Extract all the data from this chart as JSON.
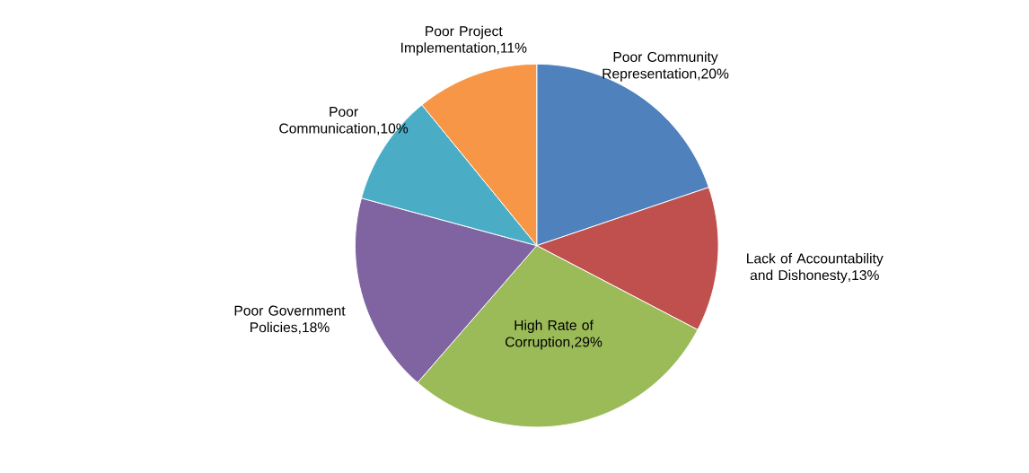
{
  "chart_data": {
    "type": "pie",
    "categories": [
      "Poor Community Representation",
      "Lack of Accountability and Dishonesty",
      "High Rate of Corruption",
      "Poor Government Policies",
      "Poor Communication",
      "Poor Project Implementation"
    ],
    "values": [
      20,
      13,
      29,
      18,
      10,
      11
    ],
    "colors": [
      "#4f81bd",
      "#c0504d",
      "#9bbb59",
      "#8064a2",
      "#4bacc6",
      "#f79646"
    ],
    "value_labels": [
      ",20%",
      ",13%",
      ",29%",
      ",18%",
      ",10%",
      ",11%"
    ]
  }
}
